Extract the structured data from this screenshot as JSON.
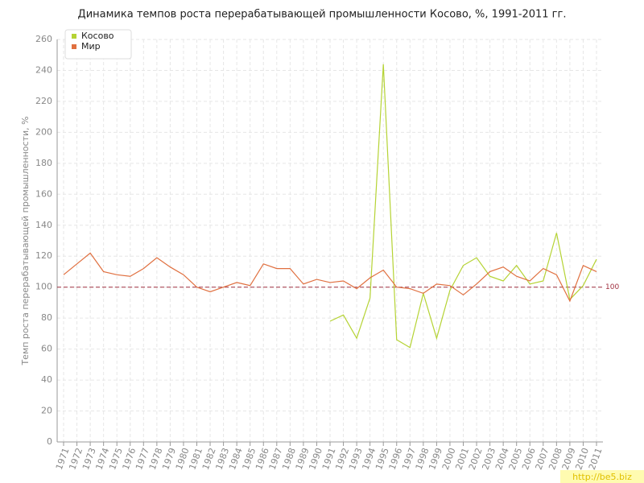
{
  "chart_data": {
    "type": "line",
    "title": "Динамика темпов роста перерабатывающей промышленности Косово, %, 1991-2011 гг.",
    "y_label": "Темп роста перерабатывающей промышленности, %",
    "categories": [
      "1971",
      "1972",
      "1973",
      "1974",
      "1975",
      "1976",
      "1977",
      "1978",
      "1979",
      "1980",
      "1981",
      "1982",
      "1983",
      "1984",
      "1985",
      "1986",
      "1987",
      "1988",
      "1989",
      "1990",
      "1991",
      "1992",
      "1993",
      "1994",
      "1995",
      "1996",
      "1997",
      "1998",
      "1999",
      "2000",
      "2001",
      "2002",
      "2003",
      "2004",
      "2005",
      "2006",
      "2007",
      "2008",
      "2009",
      "2010",
      "2011"
    ],
    "series": [
      {
        "name": "Косово",
        "color": "#b5d334",
        "values": [
          null,
          null,
          null,
          null,
          null,
          null,
          null,
          null,
          null,
          null,
          null,
          null,
          null,
          null,
          null,
          null,
          null,
          null,
          null,
          null,
          78,
          82,
          67,
          93,
          244,
          66,
          61,
          96,
          67,
          98,
          114,
          119,
          107,
          104,
          114,
          102,
          104,
          135,
          92,
          101,
          118
        ]
      },
      {
        "name": "Мир",
        "color": "#e07040",
        "values": [
          108,
          115,
          122,
          110,
          108,
          107,
          112,
          119,
          113,
          108,
          100,
          97,
          100,
          103,
          101,
          115,
          112,
          112,
          102,
          105,
          103,
          104,
          99,
          106,
          111,
          100,
          99,
          96,
          102,
          101,
          95,
          102,
          110,
          113,
          107,
          104,
          112,
          108,
          91,
          114,
          110
        ]
      }
    ],
    "ylim": [
      0,
      260
    ],
    "yticks": [
      0,
      20,
      40,
      60,
      80,
      100,
      120,
      140,
      160,
      180,
      200,
      220,
      240,
      260
    ],
    "grid": true,
    "legend": "top-left",
    "reference_line": {
      "value": 100,
      "color": "#a03040"
    },
    "watermark": "http://be5.biz"
  }
}
